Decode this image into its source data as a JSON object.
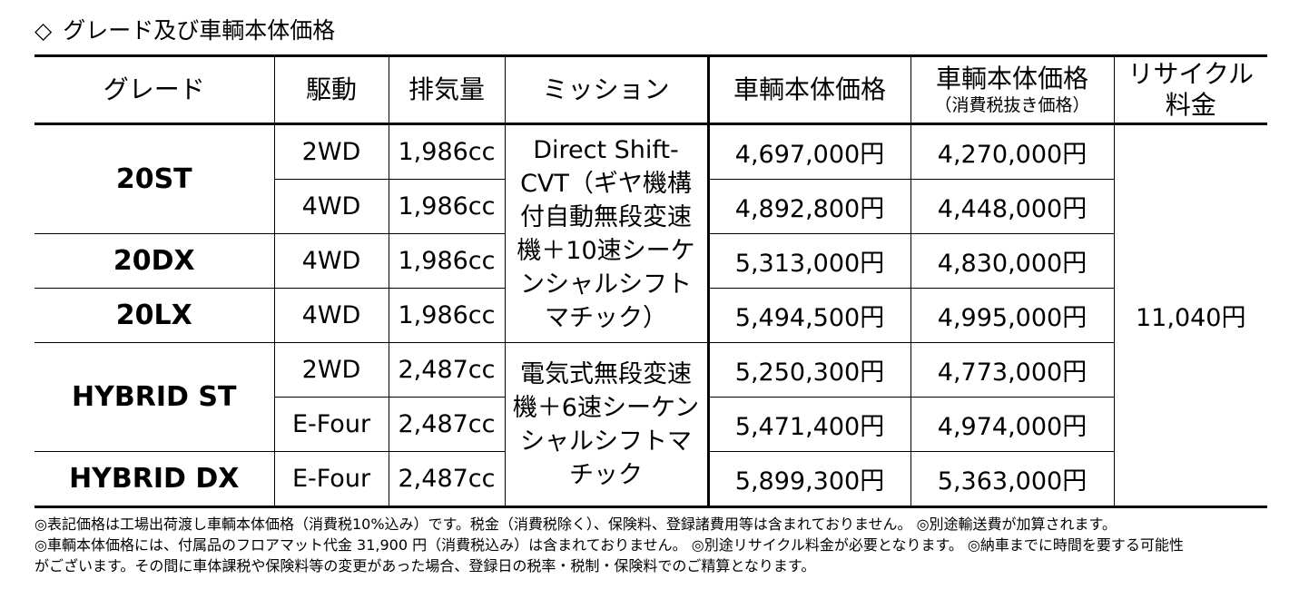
{
  "heading": {
    "marker": "◇",
    "title": "グレード及び車輌本体価格"
  },
  "table": {
    "headers": {
      "grade": "グレード",
      "drive": "駆動",
      "displacement": "排気量",
      "mission": "ミッション",
      "price": "車輌本体価格",
      "price_ex_tax": "車輌本体価格",
      "price_ex_tax_sub": "（消費税抜き価格）",
      "recycle_line1": "リサイクル",
      "recycle_line2": "料金"
    },
    "grades": [
      "20ST",
      "20DX",
      "20LX",
      "HYBRID ST",
      "HYBRID DX"
    ],
    "missions": [
      "Direct Shift-CVT（ギヤ機構付自動無段変速機＋10速シーケンシャルシフトマチック）",
      "電気式無段変速機＋6速シーケンシャルシフトマチック"
    ],
    "recycle_fee": "11,040円",
    "rows": [
      {
        "drive": "2WD",
        "displacement": "1,986cc",
        "price": "4,697,000円",
        "price_ex_tax": "4,270,000円"
      },
      {
        "drive": "4WD",
        "displacement": "1,986cc",
        "price": "4,892,800円",
        "price_ex_tax": "4,448,000円"
      },
      {
        "drive": "4WD",
        "displacement": "1,986cc",
        "price": "5,313,000円",
        "price_ex_tax": "4,830,000円"
      },
      {
        "drive": "4WD",
        "displacement": "1,986cc",
        "price": "5,494,500円",
        "price_ex_tax": "4,995,000円"
      },
      {
        "drive": "2WD",
        "displacement": "2,487cc",
        "price": "5,250,300円",
        "price_ex_tax": "4,773,000円"
      },
      {
        "drive": "E-Four",
        "displacement": "2,487cc",
        "price": "5,471,400円",
        "price_ex_tax": "4,974,000円"
      },
      {
        "drive": "E-Four",
        "displacement": "2,487cc",
        "price": "5,899,300円",
        "price_ex_tax": "5,363,000円"
      }
    ]
  },
  "notes": [
    "◎表記価格は工場出荷渡し車輌本体価格（消費税10%込み）です。税金（消費税除く）、保険料、登録諸費用等は含まれておりません。 ◎別途輸送費が加算されます。",
    "◎車輌本体価格には、付属品のフロアマット代金 31,900 円（消費税込み）は含まれておりません。 ◎別途リサイクル料金が必要となります。 ◎納車までに時間を要する可能性",
    "がございます。その間に車体課税や保険料等の変更があった場合、登録日の税率・税制・保険料でのご精算となります。"
  ]
}
